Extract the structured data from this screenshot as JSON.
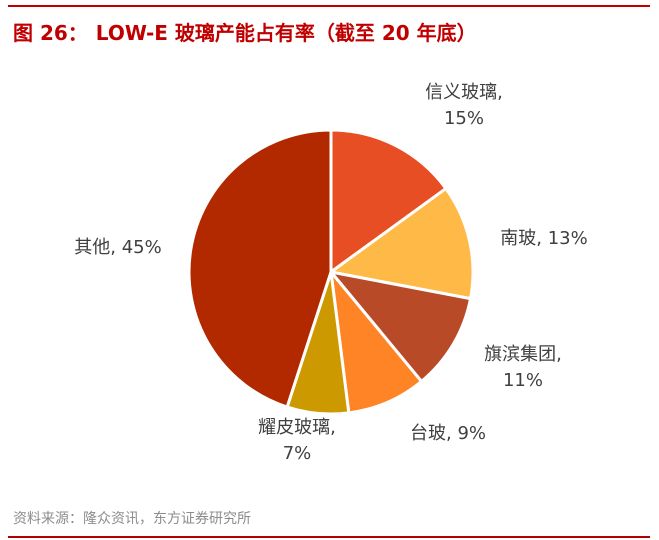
{
  "header": {
    "figure_label": "图 26：",
    "title": "LOW-E 玻璃产能占有率（截至 20 年底）"
  },
  "footer": {
    "source": "资料来源：隆众资讯，东方证券研究所"
  },
  "colors": {
    "accent": "#C00000",
    "source_text": "#8C8C8C",
    "label_text": "#404040"
  },
  "chart_data": {
    "type": "pie",
    "title": "LOW-E 玻璃产能占有率（截至 20 年底）",
    "start_angle_deg": 0,
    "direction": "clockwise",
    "unit": "%",
    "slices": [
      {
        "name": "信义玻璃",
        "value": 15,
        "label_line1": "信义玻璃,",
        "label_line2": "15%",
        "color": "#E84E24"
      },
      {
        "name": "南玻",
        "value": 13,
        "label_line1": "南玻, 13%",
        "label_line2": "",
        "color": "#FFB946"
      },
      {
        "name": "旗滨集团",
        "value": 11,
        "label_line1": "旗滨集团,",
        "label_line2": "11%",
        "color": "#B94A28"
      },
      {
        "name": "台玻",
        "value": 9,
        "label_line1": "台玻, 9%",
        "label_line2": "",
        "color": "#FF8426"
      },
      {
        "name": "耀皮玻璃",
        "value": 7,
        "label_line1": "耀皮玻璃,",
        "label_line2": "7%",
        "color": "#CC9900"
      },
      {
        "name": "其他",
        "value": 45,
        "label_line1": "其他, 45%",
        "label_line2": "",
        "color": "#B22900"
      }
    ],
    "legend": "none",
    "data_labels": "outside"
  }
}
